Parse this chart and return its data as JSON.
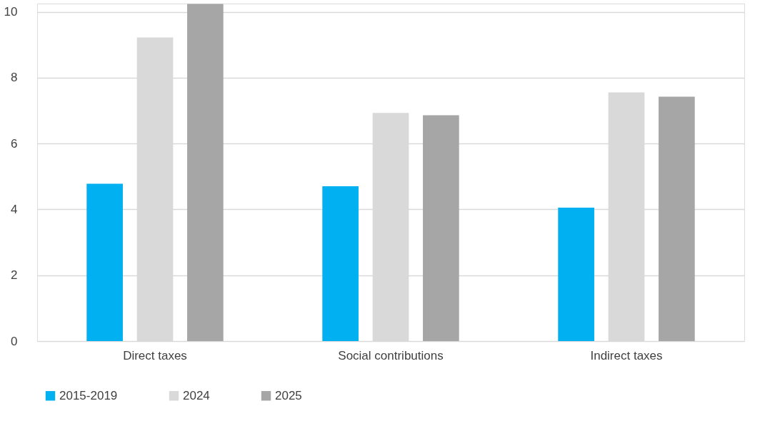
{
  "chart_data": {
    "type": "bar",
    "categories": [
      "Direct taxes",
      "Social contributions",
      "Indirect taxes"
    ],
    "series": [
      {
        "name": "2015-2019",
        "color": "#00b0f0",
        "values": [
          4.78,
          4.7,
          4.05
        ]
      },
      {
        "name": "2024",
        "color": "#d9d9d9",
        "values": [
          9.22,
          6.93,
          7.55
        ]
      },
      {
        "name": "2025",
        "color": "#a6a6a6",
        "values": [
          10.24,
          6.86,
          7.42
        ]
      }
    ],
    "ylim": [
      0,
      10.25
    ],
    "yticks": [
      0,
      2,
      4,
      6,
      8,
      10
    ],
    "grid": "y",
    "legend": "bottom"
  }
}
